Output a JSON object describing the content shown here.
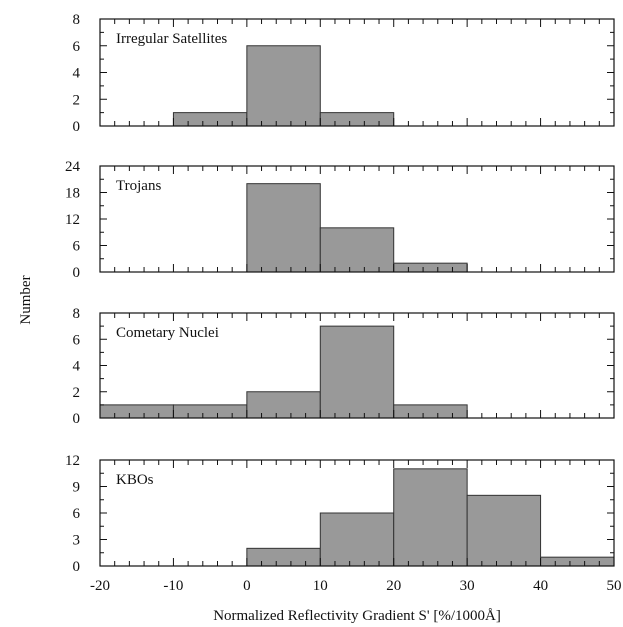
{
  "figure": {
    "ylabel": "Number",
    "xlabel": "Normalized Reflectivity Gradient S' [%/1000Å]"
  },
  "colors": {
    "bar_fill": "#999999",
    "bar_stroke": "#333333",
    "axis": "#111111"
  },
  "chart_data": [
    {
      "type": "bar",
      "label": "Irregular Satellites",
      "bin_edges": [
        -20,
        -10,
        0,
        10,
        20,
        30,
        40,
        50
      ],
      "values": [
        0,
        1,
        6,
        1,
        0,
        0,
        0
      ],
      "ylim": [
        0,
        8
      ],
      "yticks": [
        0,
        2,
        4,
        6,
        8
      ],
      "xlim": [
        -20,
        50
      ]
    },
    {
      "type": "bar",
      "label": "Trojans",
      "bin_edges": [
        -20,
        -10,
        0,
        10,
        20,
        30,
        40,
        50
      ],
      "values": [
        0,
        0,
        20,
        10,
        2,
        0,
        0
      ],
      "ylim": [
        0,
        24
      ],
      "yticks": [
        0,
        6,
        12,
        18,
        24
      ],
      "xlim": [
        -20,
        50
      ]
    },
    {
      "type": "bar",
      "label": "Cometary Nuclei",
      "bin_edges": [
        -20,
        -10,
        0,
        10,
        20,
        30,
        40,
        50
      ],
      "values": [
        1,
        1,
        2,
        7,
        1,
        0,
        0
      ],
      "ylim": [
        0,
        8
      ],
      "yticks": [
        0,
        2,
        4,
        6,
        8
      ],
      "xlim": [
        -20,
        50
      ]
    },
    {
      "type": "bar",
      "label": "KBOs",
      "bin_edges": [
        -20,
        -10,
        0,
        10,
        20,
        30,
        40,
        50
      ],
      "values": [
        0,
        0,
        2,
        6,
        11,
        8,
        1
      ],
      "ylim": [
        0,
        12
      ],
      "yticks": [
        0,
        3,
        6,
        9,
        12
      ],
      "xlim": [
        -20,
        50
      ],
      "xticks": [
        -20,
        -10,
        0,
        10,
        20,
        30,
        40,
        50
      ]
    }
  ]
}
